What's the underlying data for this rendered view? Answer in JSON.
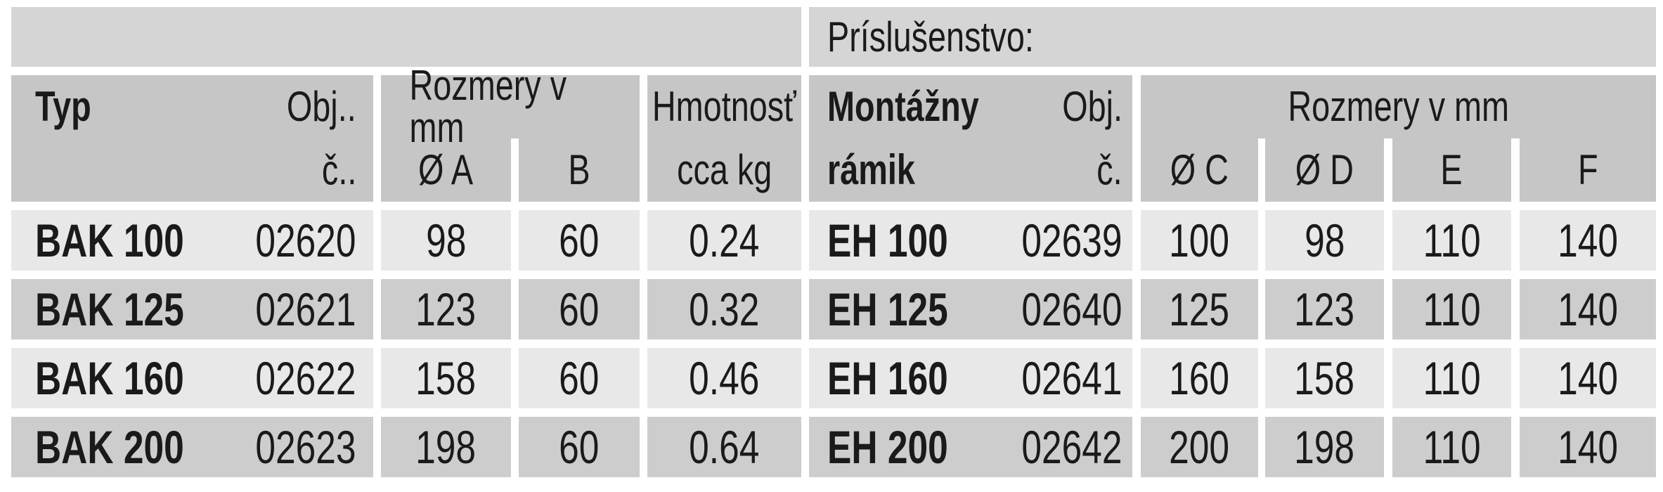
{
  "accessories_label": "Príslušenstvo:",
  "left_table": {
    "header": {
      "typ": "Typ",
      "obj_line1": "Obj..",
      "obj_line2": "č..",
      "rozmery": "Rozmery v mm",
      "col_a": "Ø A",
      "col_b": "B",
      "hmotnost_line1": "Hmotnosť",
      "hmotnost_line2": "cca kg"
    },
    "rows": [
      {
        "typ": "BAK 100",
        "obj": "02620",
        "a": "98",
        "b": "60",
        "hmotnost": "0.24"
      },
      {
        "typ": "BAK 125",
        "obj": "02621",
        "a": "123",
        "b": "60",
        "hmotnost": "0.32"
      },
      {
        "typ": "BAK 160",
        "obj": "02622",
        "a": "158",
        "b": "60",
        "hmotnost": "0.46"
      },
      {
        "typ": "BAK 200",
        "obj": "02623",
        "a": "198",
        "b": "60",
        "hmotnost": "0.64"
      }
    ]
  },
  "right_table": {
    "header": {
      "name_line1": "Montážny",
      "name_line2": "rámik",
      "obj_line1": "Obj.",
      "obj_line2": "č.",
      "rozmery": "Rozmery v mm",
      "col_c": "Ø C",
      "col_d": "Ø D",
      "col_e": "E",
      "col_f": "F"
    },
    "rows": [
      {
        "name": "EH 100",
        "obj": "02639",
        "c": "100",
        "d": "98",
        "e": "110",
        "f": "140"
      },
      {
        "name": "EH 125",
        "obj": "02640",
        "c": "125",
        "d": "123",
        "e": "110",
        "f": "140"
      },
      {
        "name": "EH 160",
        "obj": "02641",
        "c": "160",
        "d": "158",
        "e": "110",
        "f": "140"
      },
      {
        "name": "EH 200",
        "obj": "02642",
        "c": "200",
        "d": "198",
        "e": "110",
        "f": "140"
      }
    ]
  },
  "colors": {
    "page_bg": "#ffffff",
    "topbar_bg": "#d5d5d5",
    "header_bg": "#c6c6c6",
    "row_light_bg": "#e8e8e8",
    "row_dark_bg": "#cdcdcd",
    "text": "#1a1a1a"
  }
}
